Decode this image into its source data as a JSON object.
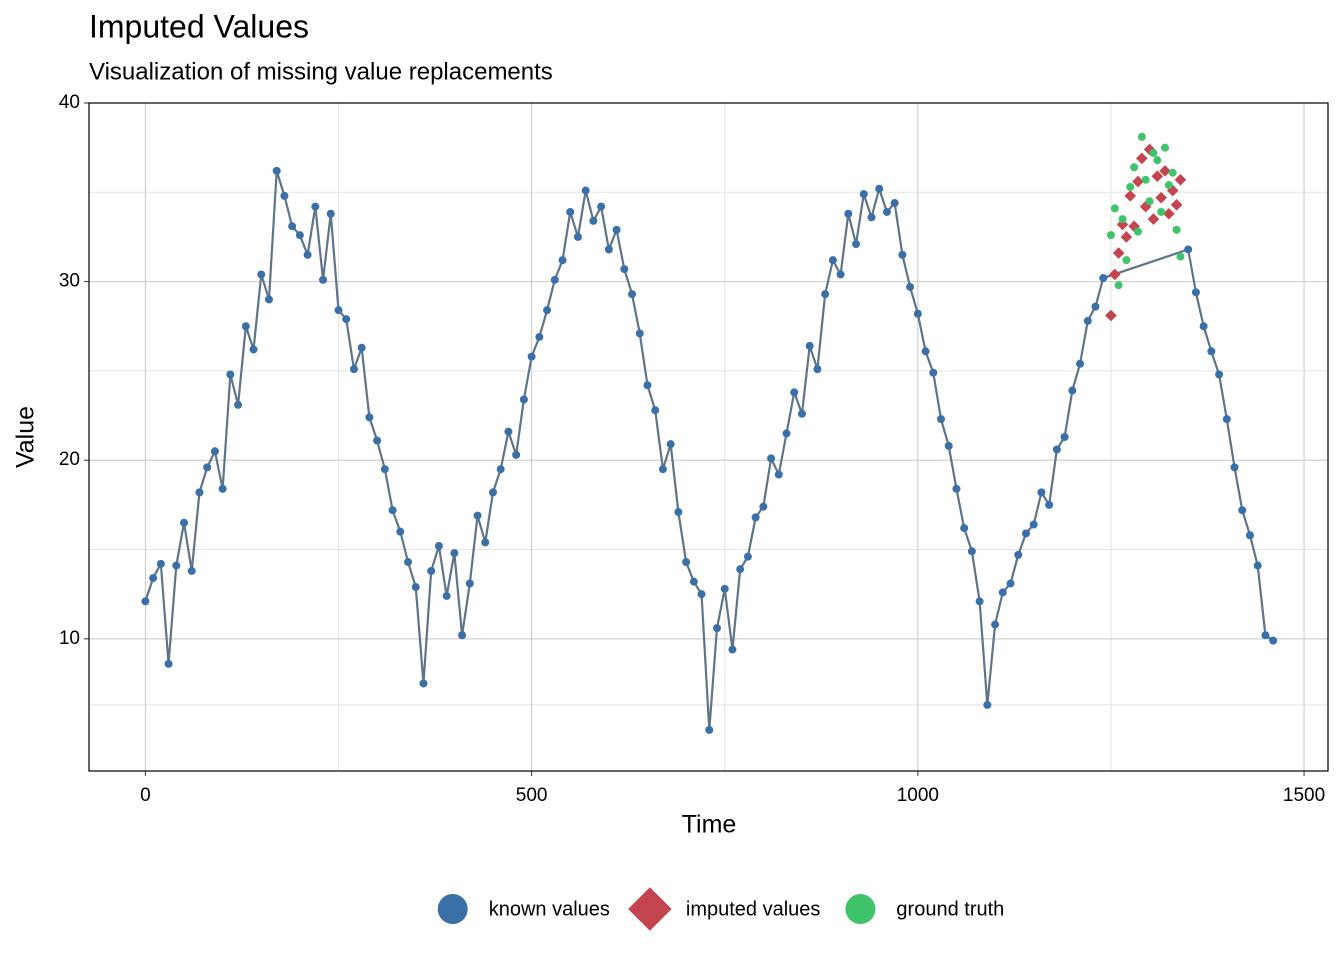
{
  "chart_data": {
    "type": "scatter",
    "title": "Imputed Values",
    "subtitle": "Visualization of missing value replacements",
    "x_label": "Time",
    "y_label": "Value",
    "xlim": [
      -73,
      1531
    ],
    "ylim": [
      2.6,
      40
    ],
    "xticks": [
      0,
      500,
      1000,
      1500
    ],
    "yticks": [
      10,
      20,
      30,
      40
    ],
    "grid": true,
    "legend": "bottom",
    "series": [
      {
        "name": "known values",
        "color": "#3b6fa8",
        "marker": "circle",
        "line": "#5f7487",
        "x": [
          0,
          10,
          20,
          30,
          40,
          50,
          60,
          70,
          80,
          90,
          100,
          110,
          120,
          130,
          140,
          150,
          160,
          170,
          180,
          190,
          200,
          210,
          220,
          230,
          240,
          250,
          260,
          270,
          280,
          290,
          300,
          310,
          320,
          330,
          340,
          350,
          360,
          370,
          380,
          390,
          400,
          410,
          420,
          430,
          440,
          450,
          460,
          470,
          480,
          490,
          500,
          510,
          520,
          530,
          540,
          550,
          560,
          570,
          580,
          590,
          600,
          610,
          620,
          630,
          640,
          650,
          660,
          670,
          680,
          690,
          700,
          710,
          720,
          730,
          740,
          750,
          760,
          770,
          780,
          790,
          800,
          810,
          820,
          830,
          840,
          850,
          860,
          870,
          880,
          890,
          900,
          910,
          920,
          930,
          940,
          950,
          960,
          970,
          980,
          990,
          1000,
          1010,
          1020,
          1030,
          1040,
          1050,
          1060,
          1070,
          1080,
          1090,
          1100,
          1110,
          1120,
          1130,
          1140,
          1150,
          1160,
          1170,
          1180,
          1190,
          1200,
          1210,
          1220,
          1230,
          1240,
          1350,
          1360,
          1370,
          1380,
          1390,
          1400,
          1410,
          1420,
          1430,
          1440,
          1450,
          1460
        ],
        "values": [
          12.1,
          13.4,
          14.2,
          8.6,
          14.1,
          16.5,
          13.8,
          18.2,
          19.6,
          20.5,
          18.4,
          24.8,
          23.1,
          27.5,
          26.2,
          30.4,
          29.0,
          36.2,
          34.8,
          33.1,
          32.6,
          31.5,
          34.2,
          30.1,
          33.8,
          28.4,
          27.9,
          25.1,
          26.3,
          22.4,
          21.1,
          19.5,
          17.2,
          16.0,
          14.3,
          12.9,
          7.5,
          13.8,
          15.2,
          12.4,
          14.8,
          10.2,
          13.1,
          16.9,
          15.4,
          18.2,
          19.5,
          21.6,
          20.3,
          23.4,
          25.8,
          26.9,
          28.4,
          30.1,
          31.2,
          33.9,
          32.5,
          35.1,
          33.4,
          34.2,
          31.8,
          32.9,
          30.7,
          29.3,
          27.1,
          24.2,
          22.8,
          19.5,
          20.9,
          17.1,
          14.3,
          13.2,
          12.5,
          4.9,
          10.6,
          12.8,
          9.4,
          13.9,
          14.6,
          16.8,
          17.4,
          20.1,
          19.2,
          21.5,
          23.8,
          22.6,
          26.4,
          25.1,
          29.3,
          31.2,
          30.4,
          33.8,
          32.1,
          34.9,
          33.6,
          35.2,
          33.9,
          34.4,
          31.5,
          29.7,
          28.2,
          26.1,
          24.9,
          22.3,
          20.8,
          18.4,
          16.2,
          14.9,
          12.1,
          6.3,
          10.8,
          12.6,
          13.1,
          14.7,
          15.9,
          16.4,
          18.2,
          17.5,
          20.6,
          21.3,
          23.9,
          25.4,
          27.8,
          28.6,
          30.2,
          31.8,
          29.4,
          27.5,
          26.1,
          24.8,
          22.3,
          19.6,
          17.2,
          15.8,
          14.1,
          10.2,
          9.9
        ]
      },
      {
        "name": "imputed values",
        "color": "#c4454f",
        "marker": "diamond",
        "x": [
          1250,
          1255,
          1260,
          1265,
          1270,
          1275,
          1280,
          1285,
          1290,
          1295,
          1300,
          1305,
          1310,
          1315,
          1320,
          1325,
          1330,
          1335,
          1340
        ],
        "values": [
          28.1,
          30.4,
          31.6,
          33.2,
          32.5,
          34.8,
          33.1,
          35.6,
          36.9,
          34.2,
          37.4,
          33.5,
          35.9,
          34.7,
          36.2,
          33.8,
          35.1,
          34.3,
          35.7
        ]
      },
      {
        "name": "ground truth",
        "color": "#3fc46c",
        "marker": "circle",
        "x": [
          1250,
          1255,
          1260,
          1265,
          1270,
          1275,
          1280,
          1285,
          1290,
          1295,
          1300,
          1305,
          1310,
          1315,
          1320,
          1325,
          1330,
          1335,
          1340
        ],
        "values": [
          32.6,
          34.1,
          29.8,
          33.5,
          31.2,
          35.3,
          36.4,
          32.8,
          38.1,
          35.7,
          34.5,
          37.2,
          36.8,
          33.9,
          37.5,
          35.4,
          36.1,
          32.9,
          31.4
        ]
      }
    ]
  }
}
